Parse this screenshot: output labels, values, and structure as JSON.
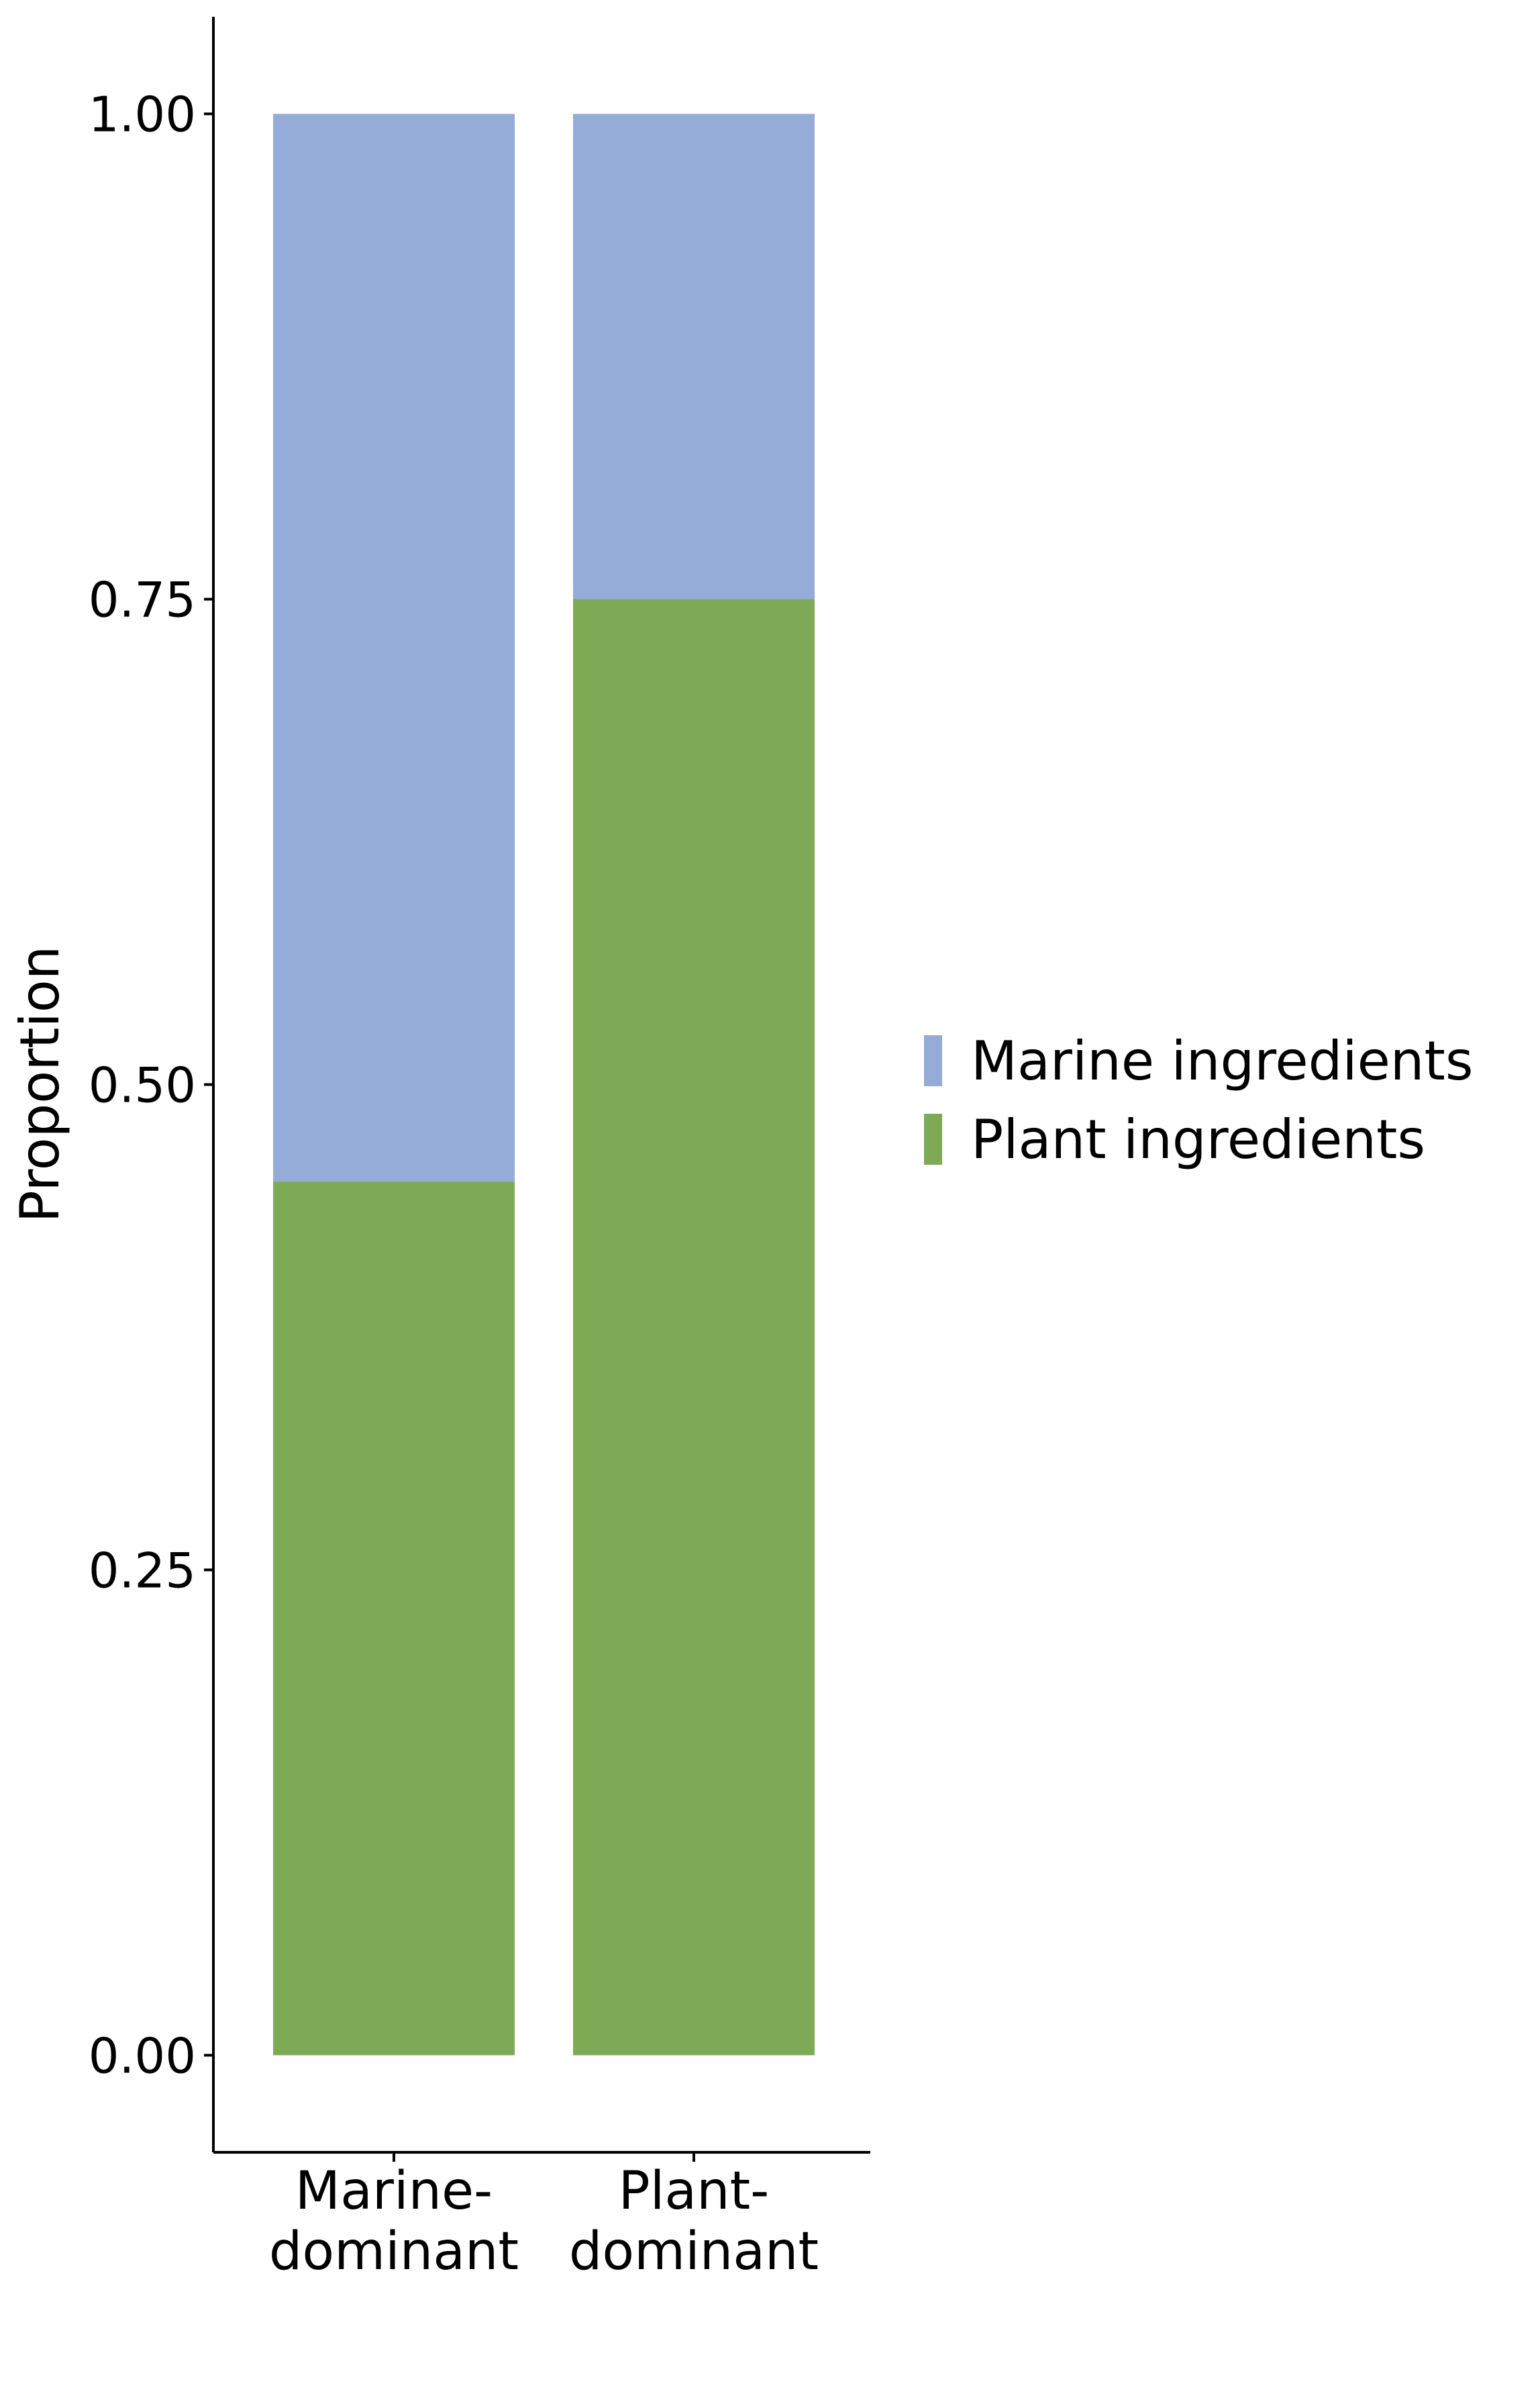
{
  "chart_data": {
    "type": "bar",
    "stacked": true,
    "categories": [
      [
        "Marine-",
        "dominant"
      ],
      [
        "Plant-",
        "dominant"
      ]
    ],
    "series": [
      {
        "name": "Plant ingredients",
        "values": [
          0.45,
          0.75
        ],
        "color": "#7faa55"
      },
      {
        "name": "Marine ingredients",
        "values": [
          0.55,
          0.25
        ],
        "color": "#95abd8"
      }
    ],
    "ylabel": "Proportion",
    "xlabel": "",
    "ylim": [
      -0.05,
      1.05
    ],
    "yticks": [
      0,
      0.25,
      0.5,
      0.75,
      1
    ],
    "ytick_labels": [
      "0.00",
      "0.25",
      "0.50",
      "0.75",
      "1.00"
    ],
    "legend": {
      "position": "right",
      "order": [
        "Marine ingredients",
        "Plant ingredients"
      ]
    },
    "grid": false
  }
}
